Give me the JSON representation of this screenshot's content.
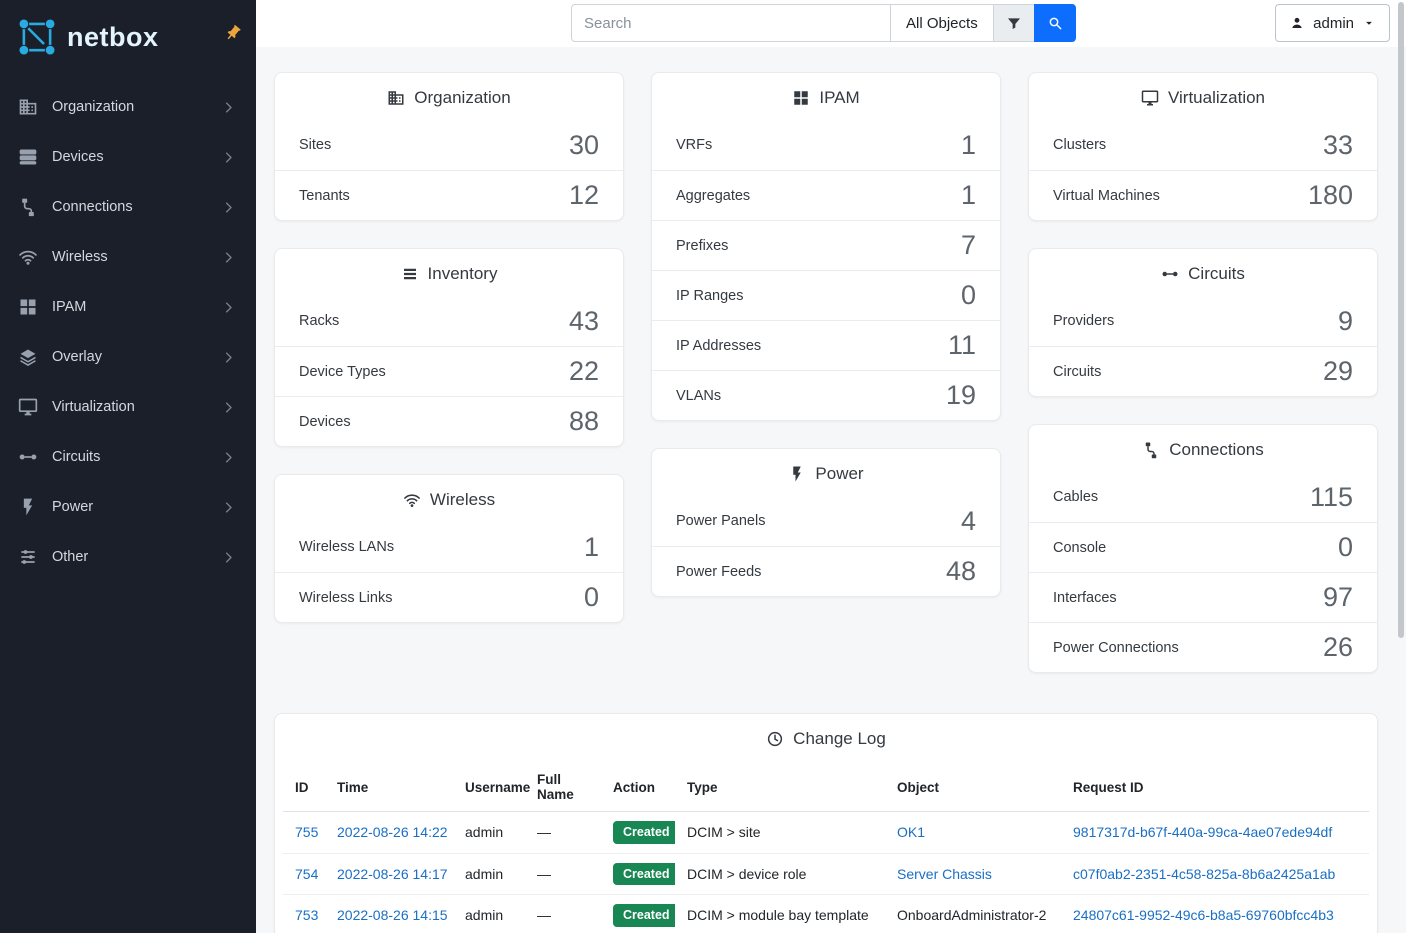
{
  "colors": {
    "accent": "#0d6efd",
    "sidebar_bg": "#1a1f29",
    "link": "#1a6fc4",
    "created_badge": "#198754",
    "logo_blue": "#29abe2",
    "pin_orange": "#eda43c"
  },
  "brand": {
    "name": "netbox",
    "logo_icon": "netbox-logo",
    "pin_icon": "pin"
  },
  "topbar": {
    "search": {
      "placeholder": "Search",
      "icon": "search"
    },
    "scope": {
      "selected": "All Objects"
    },
    "filter": {
      "icon": "filter"
    },
    "user": {
      "name": "admin",
      "icon": "person",
      "caret_icon": "caret"
    }
  },
  "sidebar": {
    "items": [
      {
        "label": "Organization",
        "icon": "building"
      },
      {
        "label": "Devices",
        "icon": "server"
      },
      {
        "label": "Connections",
        "icon": "cable"
      },
      {
        "label": "Wireless",
        "icon": "wifi"
      },
      {
        "label": "IPAM",
        "icon": "grid"
      },
      {
        "label": "Overlay",
        "icon": "layers"
      },
      {
        "label": "Virtualization",
        "icon": "monitor"
      },
      {
        "label": "Circuits",
        "icon": "circuit"
      },
      {
        "label": "Power",
        "icon": "flash"
      },
      {
        "label": "Other",
        "icon": "tune"
      }
    ]
  },
  "columns": [
    {
      "cards": [
        {
          "title": "Organization",
          "icon": "building",
          "rows": [
            {
              "label": "Sites",
              "value": "30"
            },
            {
              "label": "Tenants",
              "value": "12"
            }
          ]
        },
        {
          "title": "Inventory",
          "icon": "list",
          "rows": [
            {
              "label": "Racks",
              "value": "43"
            },
            {
              "label": "Device Types",
              "value": "22"
            },
            {
              "label": "Devices",
              "value": "88"
            }
          ]
        },
        {
          "title": "Wireless",
          "icon": "wifi",
          "rows": [
            {
              "label": "Wireless LANs",
              "value": "1"
            },
            {
              "label": "Wireless Links",
              "value": "0"
            }
          ]
        }
      ]
    },
    {
      "cards": [
        {
          "title": "IPAM",
          "icon": "grid",
          "rows": [
            {
              "label": "VRFs",
              "value": "1"
            },
            {
              "label": "Aggregates",
              "value": "1"
            },
            {
              "label": "Prefixes",
              "value": "7"
            },
            {
              "label": "IP Ranges",
              "value": "0"
            },
            {
              "label": "IP Addresses",
              "value": "11"
            },
            {
              "label": "VLANs",
              "value": "19"
            }
          ]
        },
        {
          "title": "Power",
          "icon": "flash",
          "rows": [
            {
              "label": "Power Panels",
              "value": "4"
            },
            {
              "label": "Power Feeds",
              "value": "48"
            }
          ]
        }
      ]
    },
    {
      "cards": [
        {
          "title": "Virtualization",
          "icon": "monitor",
          "rows": [
            {
              "label": "Clusters",
              "value": "33"
            },
            {
              "label": "Virtual Machines",
              "value": "180"
            }
          ]
        },
        {
          "title": "Circuits",
          "icon": "circuit",
          "rows": [
            {
              "label": "Providers",
              "value": "9"
            },
            {
              "label": "Circuits",
              "value": "29"
            }
          ]
        },
        {
          "title": "Connections",
          "icon": "cable",
          "rows": [
            {
              "label": "Cables",
              "value": "115"
            },
            {
              "label": "Console",
              "value": "0"
            },
            {
              "label": "Interfaces",
              "value": "97"
            },
            {
              "label": "Power Connections",
              "value": "26"
            }
          ]
        }
      ]
    }
  ],
  "changelog": {
    "title": "Change Log",
    "icon": "clock",
    "columns": [
      "ID",
      "Time",
      "Username",
      "Full Name",
      "Action",
      "Type",
      "Object",
      "Request ID"
    ],
    "rows": [
      {
        "id": "755",
        "time": "2022-08-26 14:22",
        "username": "admin",
        "full_name": "—",
        "action": "Created",
        "type": "DCIM > site",
        "object": "OK1",
        "object_link": true,
        "request_id": "9817317d-b67f-440a-99ca-4ae07ede94df"
      },
      {
        "id": "754",
        "time": "2022-08-26 14:17",
        "username": "admin",
        "full_name": "—",
        "action": "Created",
        "type": "DCIM > device role",
        "object": "Server Chassis",
        "object_link": true,
        "request_id": "c07f0ab2-2351-4c58-825a-8b6a2425a1ab"
      },
      {
        "id": "753",
        "time": "2022-08-26 14:15",
        "username": "admin",
        "full_name": "—",
        "action": "Created",
        "type": "DCIM > module bay template",
        "object": "OnboardAdministrator-2",
        "object_link": false,
        "request_id": "24807c61-9952-49c6-b8a5-69760bfcc4b3"
      }
    ]
  }
}
